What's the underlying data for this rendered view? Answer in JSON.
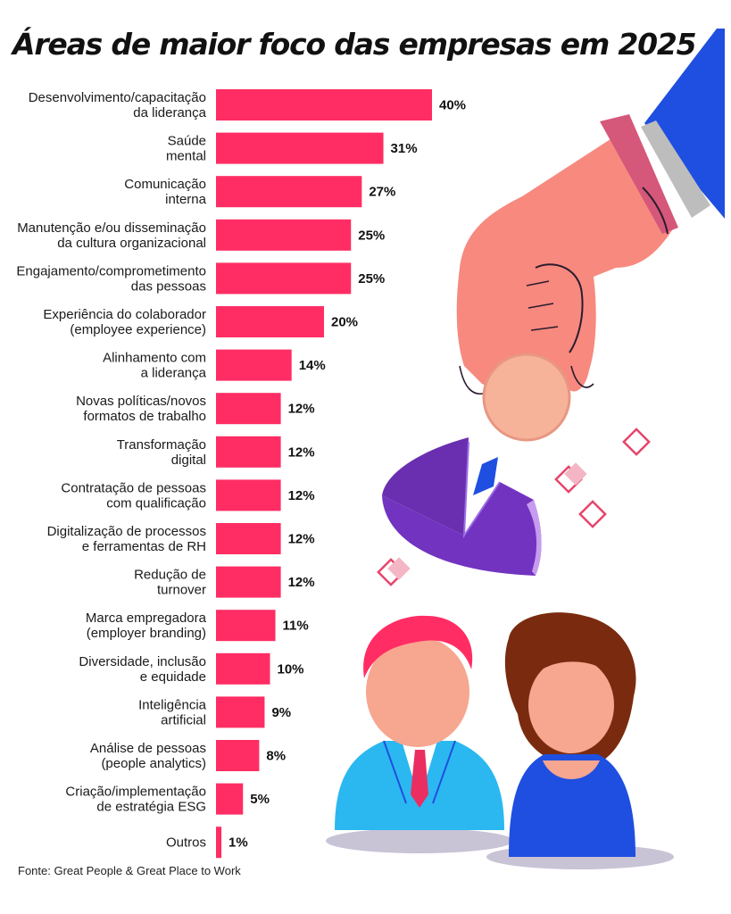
{
  "title": "Áreas de maior foco das empresas em 2025",
  "source": "Fonte: Great People & Great Place to Work",
  "colors": {
    "bar": "#ff2d63",
    "text": "#111111"
  },
  "chart_data": {
    "type": "bar",
    "orientation": "horizontal",
    "title": "Áreas de maior foco das empresas em 2025",
    "categories": [
      [
        "Desenvolvimento/capacitação",
        "da liderança"
      ],
      [
        "Saúde",
        "mental"
      ],
      [
        "Comunicação",
        "interna"
      ],
      [
        "Manutenção e/ou disseminação",
        "da cultura organizacional"
      ],
      [
        "Engajamento/comprometimento",
        "das pessoas"
      ],
      [
        "Experiência do colaborador",
        "(employee experience)"
      ],
      [
        "Alinhamento com",
        "a liderança"
      ],
      [
        "Novas políticas/novos",
        "formatos de trabalho"
      ],
      [
        "Transformação",
        "digital"
      ],
      [
        "Contratação de pessoas",
        "com qualificação"
      ],
      [
        "Digitalização de processos",
        "e ferramentas de RH"
      ],
      [
        "Redução de",
        "turnover"
      ],
      [
        "Marca empregadora",
        "(employer branding)"
      ],
      [
        "Diversidade, inclusão",
        "e equidade"
      ],
      [
        "Inteligência",
        "artificial"
      ],
      [
        "Análise de pessoas",
        "(people analytics)"
      ],
      [
        "Criação/implementação",
        "de estratégia ESG"
      ],
      [
        "Outros"
      ]
    ],
    "values": [
      40,
      31,
      27,
      25,
      25,
      20,
      14,
      12,
      12,
      12,
      12,
      12,
      11,
      10,
      9,
      8,
      5,
      1
    ],
    "value_labels": [
      "40%",
      "31%",
      "27%",
      "25%",
      "25%",
      "20%",
      "14%",
      "12%",
      "12%",
      "12%",
      "12%",
      "12%",
      "11%",
      "10%",
      "9%",
      "8%",
      "5%",
      "1%"
    ],
    "unit": "%",
    "xlabel": "",
    "ylabel": "",
    "grid": false,
    "legend": "none"
  }
}
